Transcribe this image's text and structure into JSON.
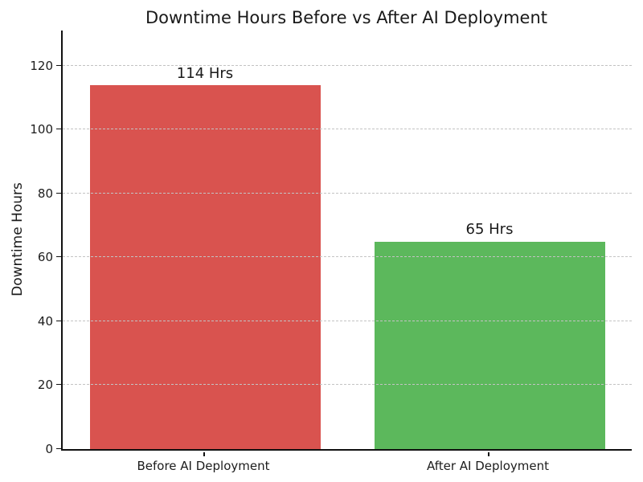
{
  "chart_data": {
    "type": "bar",
    "title": "Downtime Hours Before vs After AI Deployment",
    "xlabel": "",
    "ylabel": "Downtime Hours",
    "categories": [
      "Before AI Deployment",
      "After AI Deployment"
    ],
    "values": [
      114,
      65
    ],
    "bar_labels": [
      "114 Hrs",
      "65 Hrs"
    ],
    "bar_colors": [
      "#d9534f",
      "#5cb85c"
    ],
    "yticks": [
      0,
      20,
      40,
      60,
      80,
      100,
      120
    ],
    "ylim": [
      0,
      131
    ],
    "grid": "horizontal-dashed",
    "grid_color": "#c3c3c3",
    "background_color": "#ffffff",
    "legend": "none"
  }
}
